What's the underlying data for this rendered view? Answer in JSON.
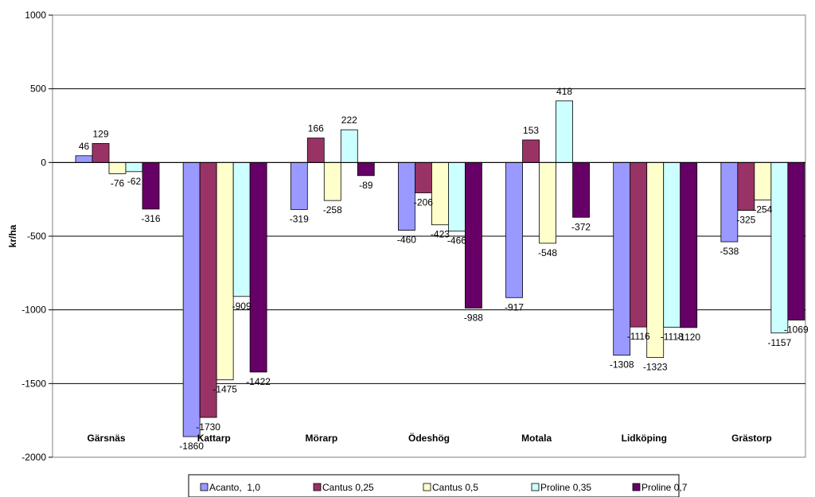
{
  "chart_data": {
    "type": "bar",
    "title": "",
    "xlabel": "",
    "ylabel": "kr/ha",
    "ylim": [
      -2000,
      1000
    ],
    "yticks": [
      1000,
      500,
      0,
      -500,
      -1000,
      -1500,
      -2000
    ],
    "grid": true,
    "legend_position": "bottom",
    "categories": [
      "Gärsnäs",
      "Kattarp",
      "Mörarp",
      "Ödeshög",
      "Motala",
      "Lidköping",
      "Grästorp"
    ],
    "series": [
      {
        "name": "Acanto,  1,0",
        "color": "#9999FF",
        "values": [
          46,
          -1860,
          -319,
          -460,
          -917,
          -1308,
          -538
        ]
      },
      {
        "name": "Cantus 0,25",
        "color": "#993366",
        "values": [
          129,
          -1730,
          166,
          -206,
          153,
          -1116,
          -325
        ]
      },
      {
        "name": "Cantus 0,5",
        "color": "#FFFFCC",
        "values": [
          -76,
          -1475,
          -258,
          -423,
          -548,
          -1323,
          -254
        ]
      },
      {
        "name": "Proline 0,35",
        "color": "#CCFFFF",
        "values": [
          -62,
          -909,
          222,
          -466,
          418,
          -1118,
          -1157
        ]
      },
      {
        "name": "Proline 0,7",
        "color": "#660066",
        "values": [
          -316,
          -1422,
          -89,
          -988,
          -372,
          -1120,
          -1069
        ]
      }
    ]
  }
}
